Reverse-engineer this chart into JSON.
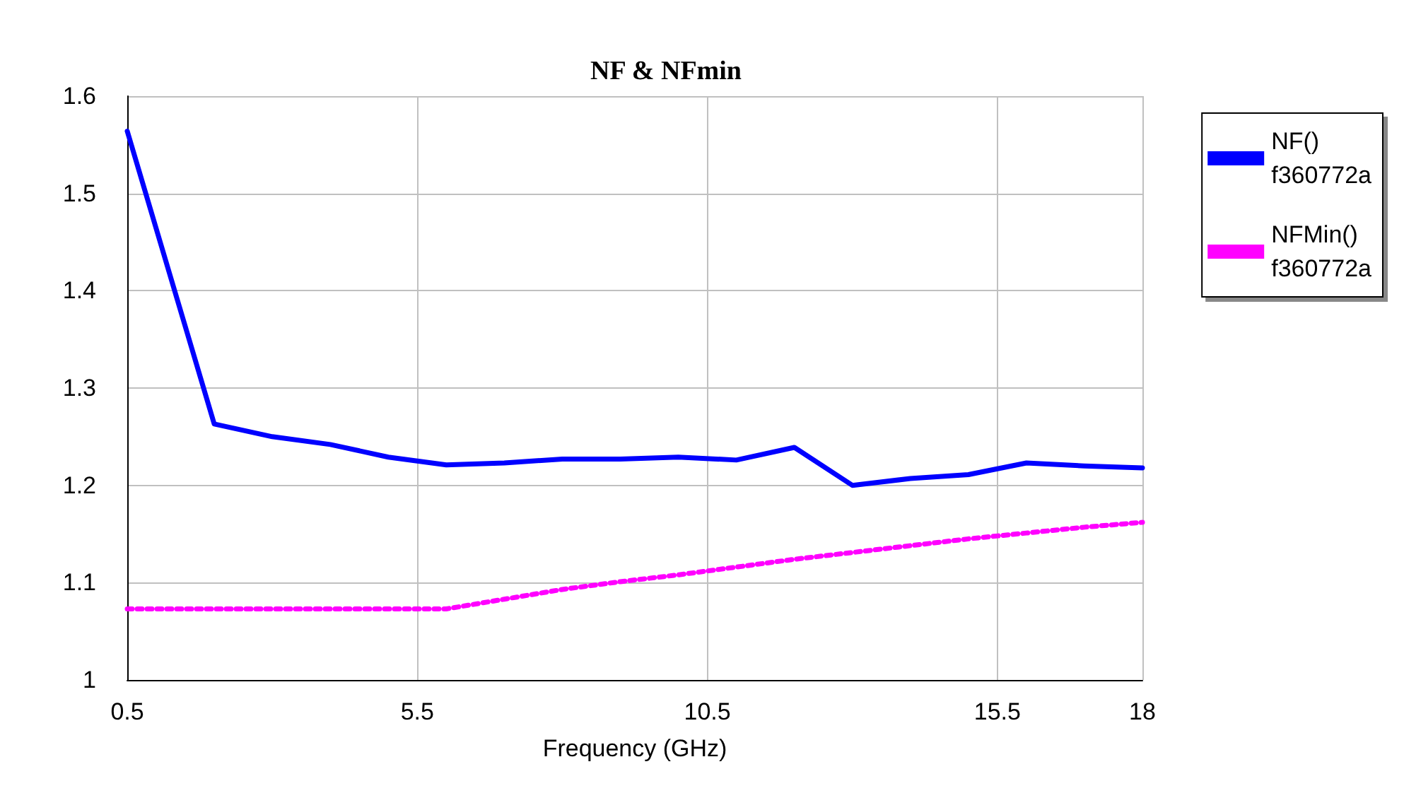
{
  "chart_data": {
    "type": "line",
    "title": "NF & NFmin",
    "xlabel": "Frequency (GHz)",
    "x": [
      0.5,
      2,
      3,
      4,
      5,
      6,
      7,
      8,
      9,
      10,
      11,
      12,
      13,
      14,
      15,
      16,
      17,
      18
    ],
    "series": [
      {
        "name": "NF()\nf360772a",
        "color": "#0000ff",
        "line_style": "solid",
        "values": [
          1.564,
          1.263,
          1.25,
          1.242,
          1.229,
          1.221,
          1.223,
          1.227,
          1.227,
          1.229,
          1.226,
          1.239,
          1.2,
          1.207,
          1.211,
          1.223,
          1.22,
          1.218
        ]
      },
      {
        "name": "NFMin()\nf360772a",
        "color": "#ff00ff",
        "line_style": "dotted",
        "values": [
          1.073,
          1.073,
          1.073,
          1.073,
          1.073,
          1.073,
          1.083,
          1.093,
          1.101,
          1.108,
          1.116,
          1.124,
          1.131,
          1.138,
          1.145,
          1.151,
          1.157,
          1.162
        ]
      }
    ],
    "xlim": [
      0.5,
      18
    ],
    "xticks": [
      0.5,
      5.5,
      10.5,
      15.5,
      18
    ],
    "ylim": [
      1,
      1.6
    ],
    "yticks": [
      1,
      1.1,
      1.2,
      1.3,
      1.4,
      1.5,
      1.6
    ],
    "grid": true,
    "legend": "top right",
    "marker": "none"
  }
}
